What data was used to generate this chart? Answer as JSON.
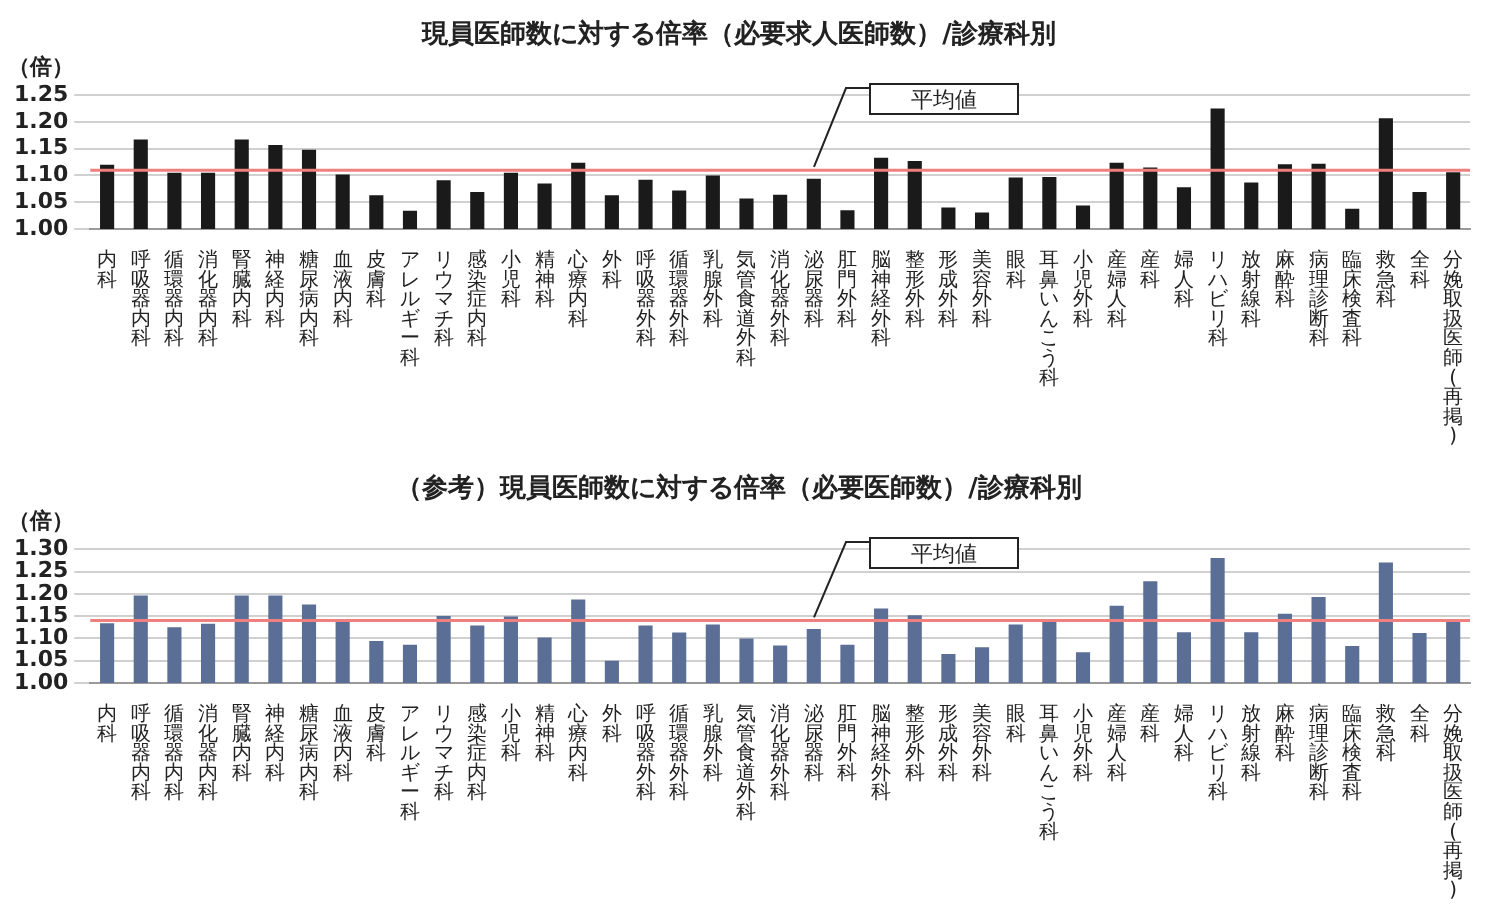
{
  "chart_data": [
    {
      "type": "bar",
      "title": "現員医師数に対する倍率（必要求人医師数）/診療科別",
      "ylabel": "（倍）",
      "categories": [
        "内科",
        "呼吸器内科",
        "循環器内科",
        "消化器内科",
        "腎臓内科",
        "神経内科",
        "糖尿病内科",
        "血液内科",
        "皮膚科",
        "アレルギー科",
        "リウマチ科",
        "感染症内科",
        "小児科",
        "精神科",
        "心療内科",
        "外科",
        "呼吸器外科",
        "循環器外科",
        "乳腺外科",
        "気管食道外科",
        "消化器外科",
        "泌尿器科",
        "肛門外科",
        "脳神経外科",
        "整形外科",
        "形成外科",
        "美容外科",
        "眼科",
        "耳鼻いんこう科",
        "小児外科",
        "産婦人科",
        "産科",
        "婦人科",
        "リハビリ科",
        "放射線科",
        "麻酔科",
        "病理診断科",
        "臨床検査科",
        "救急科",
        "全科",
        "分娩取扱医師(再掲)"
      ],
      "series": [
        {
          "color": "#1a1a1a",
          "values": [
            1.12,
            1.167,
            1.105,
            1.105,
            1.167,
            1.157,
            1.148,
            1.102,
            1.063,
            1.034,
            1.091,
            1.069,
            1.105,
            1.085,
            1.124,
            1.063,
            1.092,
            1.072,
            1.1,
            1.057,
            1.064,
            1.094,
            1.035,
            1.133,
            1.127,
            1.04,
            1.031,
            1.096,
            1.097,
            1.044,
            1.124,
            1.115,
            1.078,
            1.225,
            1.087,
            1.121,
            1.122,
            1.038,
            1.207,
            1.069,
            1.106
          ]
        }
      ],
      "ylim": [
        1,
        1.25
      ],
      "yticks": [
        {
          "value": 1,
          "label": "1.00"
        },
        {
          "value": 1.05,
          "label": "1.05"
        },
        {
          "value": 1.1,
          "label": "1.10"
        },
        {
          "value": 1.15,
          "label": "1.15"
        },
        {
          "value": 1.2,
          "label": "1.20"
        },
        {
          "value": 1.25,
          "label": "1.25"
        }
      ],
      "grid": "y",
      "legend": false,
      "ref_lines": [
        {
          "axis": "y",
          "value": 1.11,
          "label": "平均値",
          "color": "#f08080"
        }
      ]
    },
    {
      "type": "bar",
      "title": "（参考）現員医師数に対する倍率（必要医師数）/診療科別",
      "ylabel": "（倍）",
      "categories": [
        "内科",
        "呼吸器内科",
        "循環器内科",
        "消化器内科",
        "腎臓内科",
        "神経内科",
        "糖尿病内科",
        "血液内科",
        "皮膚科",
        "アレルギー科",
        "リウマチ科",
        "感染症内科",
        "小児科",
        "精神科",
        "心療内科",
        "外科",
        "呼吸器外科",
        "循環器外科",
        "乳腺外科",
        "気管食道外科",
        "消化器外科",
        "泌尿器科",
        "肛門外科",
        "脳神経外科",
        "整形外科",
        "形成外科",
        "美容外科",
        "眼科",
        "耳鼻いんこう科",
        "小児外科",
        "産婦人科",
        "産科",
        "婦人科",
        "リハビリ科",
        "放射線科",
        "麻酔科",
        "病理診断科",
        "臨床検査科",
        "救急科",
        "全科",
        "分娩取扱医師(再掲)"
      ],
      "series": [
        {
          "color": "#5b6e96",
          "values": [
            1.134,
            1.196,
            1.125,
            1.133,
            1.196,
            1.196,
            1.176,
            1.143,
            1.094,
            1.086,
            1.15,
            1.129,
            1.149,
            1.102,
            1.187,
            1.05,
            1.129,
            1.113,
            1.131,
            1.1,
            1.084,
            1.121,
            1.086,
            1.167,
            1.152,
            1.065,
            1.08,
            1.131,
            1.143,
            1.069,
            1.173,
            1.228,
            1.114,
            1.28,
            1.114,
            1.155,
            1.193,
            1.083,
            1.27,
            1.112,
            1.14
          ]
        }
      ],
      "ylim": [
        1,
        1.3
      ],
      "yticks": [
        {
          "value": 1,
          "label": "1.00"
        },
        {
          "value": 1.05,
          "label": "1.05"
        },
        {
          "value": 1.1,
          "label": "1.10"
        },
        {
          "value": 1.15,
          "label": "1.15"
        },
        {
          "value": 1.2,
          "label": "1.20"
        },
        {
          "value": 1.25,
          "label": "1.25"
        },
        {
          "value": 1.3,
          "label": "1.30"
        }
      ],
      "grid": "y",
      "legend": false,
      "ref_lines": [
        {
          "axis": "y",
          "value": 1.14,
          "label": "平均値",
          "color": "#f08080"
        }
      ]
    }
  ]
}
